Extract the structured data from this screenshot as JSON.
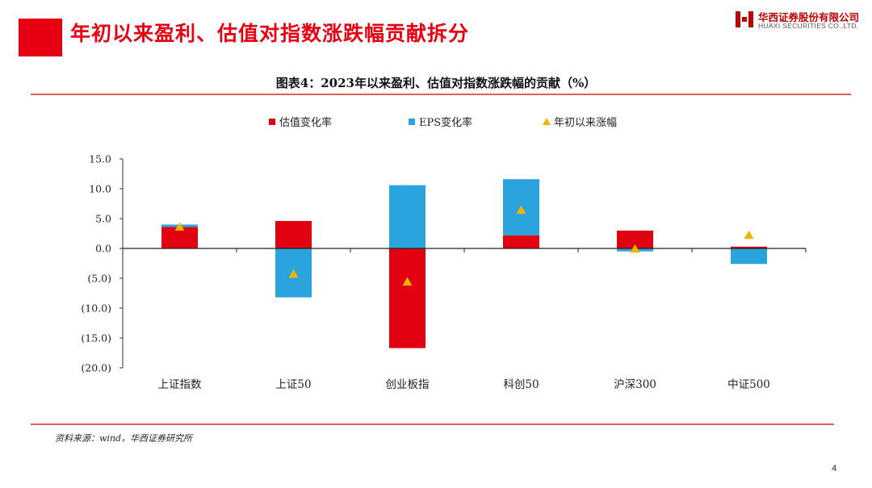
{
  "header": {
    "title": "年初以来盈利、估值对指数涨跌幅贡献拆分",
    "accent_color": "#e60012"
  },
  "logo": {
    "name_cn": "华西证券股份有限公司",
    "name_en": "HUAXI SECURITIES CO.,LTD.",
    "icon": "huaxi-logo-icon"
  },
  "footer": {
    "source": "资料来源：wind，华西证券研究所",
    "page_number": "4"
  },
  "chart_data": {
    "type": "bar",
    "stacked": true,
    "title": "图表4：2023年以来盈利、估值对指数涨跌幅的贡献（%）",
    "xlabel": "",
    "ylabel": "",
    "categories": [
      "上证指数",
      "上证50",
      "创业板指",
      "科创50",
      "沪深300",
      "中证500"
    ],
    "ylim": [
      -20,
      15
    ],
    "yticks": [
      "15.0",
      "10.0",
      "5.0",
      "0.0",
      "(5.0)",
      "(10.0)",
      "(15.0)",
      "(20.0)"
    ],
    "ytick_values": [
      15,
      10,
      5,
      0,
      -5,
      -10,
      -15,
      -20
    ],
    "grid": false,
    "legend_position": "top",
    "series": [
      {
        "name": "估值变化率",
        "kind": "bar",
        "color": "#e00010",
        "values": [
          3.6,
          4.6,
          -16.7,
          2.2,
          3.0,
          0.3
        ]
      },
      {
        "name": "EPS变化率",
        "kind": "bar",
        "color": "#2ba3dc",
        "values": [
          0.4,
          -8.2,
          10.6,
          9.4,
          -0.5,
          -2.6
        ]
      },
      {
        "name": "年初以来涨幅",
        "kind": "marker",
        "color": "#f2b400",
        "values": [
          3.6,
          -4.3,
          -5.6,
          6.4,
          -0.1,
          2.2
        ]
      }
    ]
  }
}
